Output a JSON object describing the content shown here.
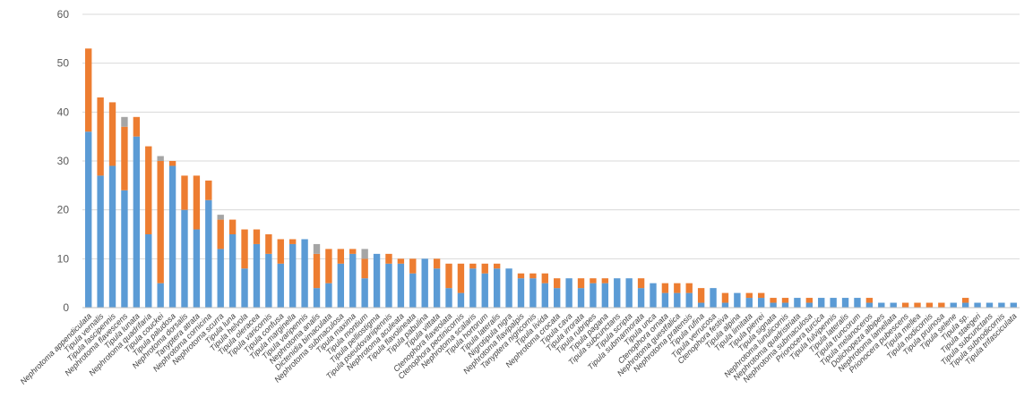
{
  "chart_data": {
    "type": "bar",
    "stacked": true,
    "title": "",
    "xlabel": "",
    "ylabel": "",
    "ylim": [
      0,
      60
    ],
    "yticks": [
      0,
      10,
      20,
      30,
      40,
      50,
      60
    ],
    "grid": true,
    "legend": "none",
    "colors": {
      "blue": "#5b9bd5",
      "orange": "#ed7d31",
      "gray": "#a5a5a5",
      "grid": "#d9d9d9",
      "axis": "#bfbfbf",
      "text": "#595959"
    },
    "categories": [
      "Nephrotoma appendiculata",
      "Tipula vernalis",
      "Tipula fascipennis",
      "Nephrotoma flavescens",
      "Tipula lunata",
      "Nephrotoma quadrifaria",
      "Tipula couckei",
      "Tipula paludosa",
      "Nephrotoma dorsalis",
      "Tanyptera atrata",
      "Nephrotoma cornicina",
      "Nephrotoma scurra",
      "Tipula luna",
      "Tipula helvola",
      "Tipula oleracea",
      "Tipula varicornis",
      "Tipula confusa",
      "Tipula marginella",
      "Tipula varipennis",
      "Nephrotoma analis",
      "Dictenidia bimaculata",
      "Nephrotoma submaculosa",
      "Tipula maxima",
      "Tipula montium",
      "Tipula pelliostigma",
      "Tipula pseudovariipennis",
      "Nephrotoma aculeata",
      "Tipula flavolineata",
      "Tipula pabulina",
      "Tipula vittata",
      "Ctenophora flaveolata",
      "Ctenophora pectinicornis",
      "Nephrotoma scalaris",
      "Tipula hortorum",
      "Tipula lateralis",
      "Nigrotipula nigra",
      "Nephrotoma flavipalpis",
      "Tanyptera nigricornis",
      "Tipula livida",
      "Nephrotoma crocata",
      "Tipula cava",
      "Tipula irrorata",
      "Tipula rubripes",
      "Tipula pagana",
      "Tipula subcunctans",
      "Tipula scripta",
      "Tipula submarmorata",
      "Tipula unca",
      "Ctenophora ornata",
      "Nephrotoma guestfalica",
      "Nephrotoma pratensis",
      "Tipula rufina",
      "Tipula verrucosa",
      "Ctenophora festiva",
      "Tipula alpina",
      "Tipula limitata",
      "Tipula pierrei",
      "Tipula signata",
      "Nephrotoma lunulicornis",
      "Nephrotoma quadristriata",
      "Nephrotoma submaculosa",
      "Prionocera turcica",
      "Tipula fulvipennis",
      "Tipula lateralis",
      "Tipula truncorum",
      "Tipula melanoceros",
      "Dolichopeza albipes",
      "Nephrotoma lamellata",
      "Prionocera pubescens",
      "Tipula melleа",
      "Tipula nodicornis",
      "Tipula pruinosa",
      "Tipula selene",
      "Tipula sp.",
      "Tipula staegeri",
      "Tipula subcunctans",
      "Tipula subnodicornis",
      "Tipula trifasciculata"
    ],
    "series": [
      {
        "color_key": "blue",
        "values": [
          36,
          27,
          29,
          24,
          35,
          15,
          5,
          29,
          20,
          16,
          22,
          12,
          15,
          8,
          13,
          11,
          9,
          13,
          14,
          4,
          5,
          9,
          11,
          6,
          11,
          9,
          9,
          7,
          10,
          8,
          4,
          3,
          8,
          7,
          8,
          8,
          6,
          6,
          5,
          4,
          6,
          4,
          5,
          5,
          6,
          6,
          4,
          5,
          3,
          3,
          3,
          1,
          4,
          1,
          3,
          2,
          2,
          1,
          1,
          2,
          1,
          2,
          2,
          2,
          2,
          1,
          1,
          1,
          0,
          0,
          0,
          0,
          1,
          1,
          1,
          1,
          1,
          1
        ]
      },
      {
        "color_key": "orange",
        "values": [
          17,
          16,
          13,
          13,
          4,
          18,
          25,
          1,
          7,
          11,
          4,
          6,
          3,
          8,
          3,
          4,
          5,
          1,
          0,
          7,
          7,
          3,
          1,
          4,
          0,
          2,
          1,
          3,
          0,
          2,
          5,
          6,
          1,
          2,
          1,
          0,
          1,
          1,
          2,
          2,
          0,
          2,
          1,
          1,
          0,
          0,
          2,
          0,
          2,
          2,
          2,
          3,
          0,
          2,
          0,
          1,
          1,
          1,
          1,
          0,
          1,
          0,
          0,
          0,
          0,
          1,
          0,
          0,
          1,
          1,
          1,
          1,
          0,
          1,
          0,
          0,
          0,
          0
        ]
      },
      {
        "color_key": "gray",
        "values": [
          0,
          0,
          0,
          2,
          0,
          0,
          1,
          0,
          0,
          0,
          0,
          1,
          0,
          0,
          0,
          0,
          0,
          0,
          0,
          2,
          0,
          0,
          0,
          2,
          0,
          0,
          0,
          0,
          0,
          0,
          0,
          0,
          0,
          0,
          0,
          0,
          0,
          0,
          0,
          0,
          0,
          0,
          0,
          0,
          0,
          0,
          0,
          0,
          0,
          0,
          0,
          0,
          0,
          0,
          0,
          0,
          0,
          0,
          0,
          0,
          0,
          0,
          0,
          0,
          0,
          0,
          0,
          0,
          0,
          0,
          0,
          0,
          0,
          0,
          0,
          0,
          0,
          0
        ]
      }
    ]
  }
}
